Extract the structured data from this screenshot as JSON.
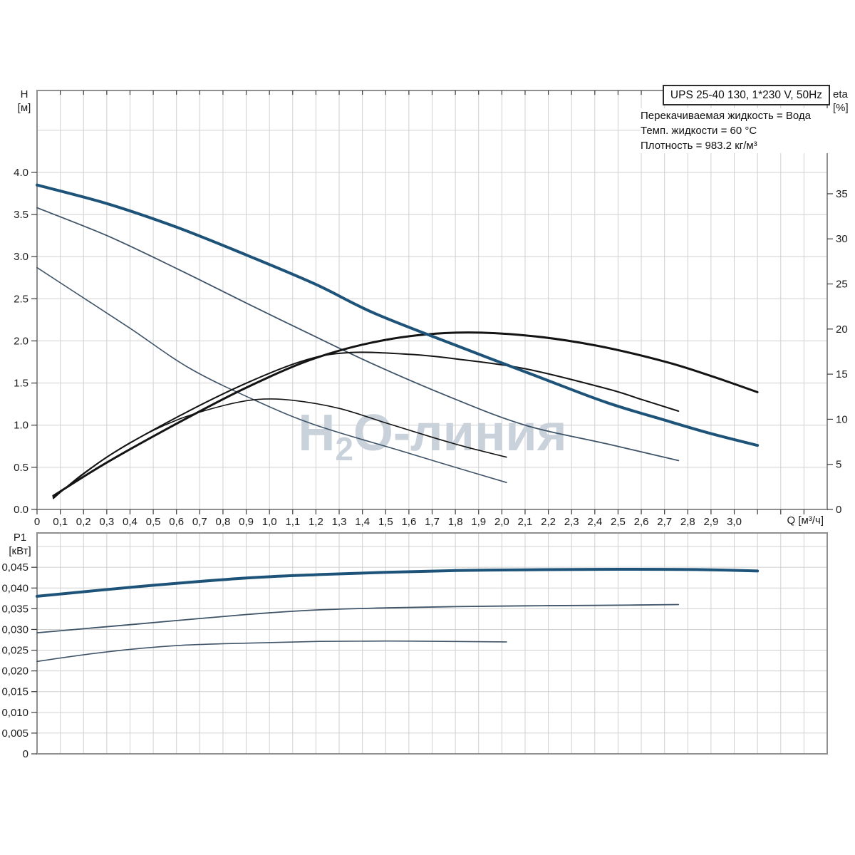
{
  "header": {
    "title_box": "UPS 25-40 130, 1*230 V, 50Hz",
    "info_lines": [
      "Перекачиваемая жидкость = Вода",
      "Темп. жидкости = 60 °C",
      "Плотность = 983.2 кг/м³"
    ],
    "watermark": "H₂O-линия",
    "watermark_parts": {
      "pre": "H",
      "sub": "2",
      "post": "O-линия"
    }
  },
  "colors": {
    "curve_primary": "#1d5379",
    "curve_secondary": "#3f5468",
    "curve_eta": "#141414",
    "grid": "#d0d0d0",
    "frame": "#8f8f8f",
    "tick": "#3a3a3a",
    "text": "#1c1c1c",
    "watermark": "#c9d1da"
  },
  "top_chart": {
    "y_left_name": "H",
    "y_left_unit": "[м]",
    "y_right_name": "eta",
    "y_right_unit": "[%]",
    "x_label": "Q [м³/ч]"
  },
  "bottom_chart": {
    "y_left_name": "P1",
    "y_left_unit": "[кВт]"
  },
  "chart_data": [
    {
      "type": "line",
      "title": "Head and efficiency curves, UPS 25-40 130, three speeds",
      "x_axis": {
        "min": 0,
        "max": 3.4,
        "grid_step": 0.1,
        "tick_values": [
          0,
          0.1,
          0.2,
          0.3,
          0.4,
          0.5,
          0.6,
          0.7,
          0.8,
          0.9,
          1.0,
          1.1,
          1.2,
          1.3,
          1.4,
          1.5,
          1.6,
          1.7,
          1.8,
          1.9,
          2.0,
          2.1,
          2.2,
          2.3,
          2.4,
          2.5,
          2.6,
          2.7,
          2.8,
          2.9,
          3.0
        ],
        "tick_labels": [
          "0",
          "0,1",
          "0,2",
          "0,3",
          "0,4",
          "0,5",
          "0,6",
          "0,7",
          "0,8",
          "0,9",
          "1,0",
          "1,1",
          "1,2",
          "1,3",
          "1,4",
          "1,5",
          "1,6",
          "1,7",
          "1,8",
          "1,9",
          "2,0",
          "2,1",
          "2,2",
          "2,3",
          "2,4",
          "2,5",
          "2,6",
          "2,7",
          "2,8",
          "2,9",
          "3,0"
        ],
        "label": "Q [м³/ч]"
      },
      "y_left": {
        "label": "H [м]",
        "min": 0,
        "max": 4.972,
        "grid_step": 0.5,
        "tick_values": [
          0,
          0.5,
          1.0,
          1.5,
          2.0,
          2.5,
          3.0,
          3.5,
          4.0
        ],
        "tick_labels": [
          "0.0",
          "0.5",
          "1.0",
          "1.5",
          "2.0",
          "2.5",
          "3.0",
          "3.5",
          "4.0"
        ]
      },
      "y_right": {
        "label": "eta [%]",
        "min": 0,
        "max": 46.45,
        "tick_values": [
          0,
          5,
          10,
          15,
          20,
          25,
          30,
          35
        ],
        "tick_labels": [
          "0",
          "5",
          "10",
          "15",
          "20",
          "25",
          "30",
          "35"
        ]
      },
      "grid": true,
      "legend": "none",
      "series": [
        {
          "name": "head-speed-1",
          "axis": "left",
          "color": "secondary",
          "width": 1.6,
          "points": [
            [
              0,
              2.87
            ],
            [
              0.15,
              2.6
            ],
            [
              0.4,
              2.15
            ],
            [
              0.66,
              1.67
            ],
            [
              0.95,
              1.28
            ],
            [
              1.2,
              1.0
            ],
            [
              1.56,
              0.7
            ],
            [
              1.8,
              0.5
            ],
            [
              2.02,
              0.32
            ]
          ]
        },
        {
          "name": "head-speed-2",
          "axis": "left",
          "color": "secondary",
          "width": 1.8,
          "points": [
            [
              0,
              3.58
            ],
            [
              0.3,
              3.25
            ],
            [
              0.6,
              2.86
            ],
            [
              0.9,
              2.45
            ],
            [
              1.16,
              2.1
            ],
            [
              1.45,
              1.72
            ],
            [
              1.78,
              1.33
            ],
            [
              2.1,
              1.0
            ],
            [
              2.45,
              0.78
            ],
            [
              2.76,
              0.58
            ]
          ]
        },
        {
          "name": "eta-speed-1",
          "axis": "right",
          "color": "eta",
          "width": 1.6,
          "points": [
            [
              0.07,
              1.2
            ],
            [
              0.2,
              4.0
            ],
            [
              0.4,
              7.4
            ],
            [
              0.6,
              9.9
            ],
            [
              0.8,
              11.5
            ],
            [
              0.95,
              12.2
            ],
            [
              1.1,
              12.1
            ],
            [
              1.3,
              11.2
            ],
            [
              1.5,
              9.6
            ],
            [
              1.7,
              8.0
            ],
            [
              1.85,
              6.9
            ],
            [
              2.02,
              5.8
            ]
          ]
        },
        {
          "name": "eta-speed-2",
          "axis": "right",
          "color": "eta",
          "width": 2.0,
          "points": [
            [
              0.07,
              1.3
            ],
            [
              0.3,
              5.8
            ],
            [
              0.6,
              10.2
            ],
            [
              0.9,
              14.0
            ],
            [
              1.16,
              16.6
            ],
            [
              1.35,
              17.4
            ],
            [
              1.6,
              17.2
            ],
            [
              1.8,
              16.7
            ],
            [
              2.1,
              15.6
            ],
            [
              2.45,
              13.4
            ],
            [
              2.6,
              12.2
            ],
            [
              2.76,
              10.9
            ]
          ]
        },
        {
          "name": "eta-speed-3",
          "axis": "right",
          "color": "eta",
          "width": 3.0,
          "points": [
            [
              0.07,
              1.5
            ],
            [
              0.3,
              5.2
            ],
            [
              0.6,
              9.5
            ],
            [
              0.9,
              13.5
            ],
            [
              1.2,
              16.8
            ],
            [
              1.5,
              18.8
            ],
            [
              1.8,
              19.6
            ],
            [
              2.1,
              19.3
            ],
            [
              2.4,
              18.2
            ],
            [
              2.7,
              16.4
            ],
            [
              2.9,
              14.8
            ],
            [
              3.1,
              13.0
            ]
          ]
        },
        {
          "name": "head-speed-3",
          "axis": "left",
          "color": "primary",
          "width": 4.0,
          "points": [
            [
              0,
              3.85
            ],
            [
              0.3,
              3.63
            ],
            [
              0.6,
              3.35
            ],
            [
              0.9,
              3.02
            ],
            [
              1.2,
              2.67
            ],
            [
              1.45,
              2.33
            ],
            [
              1.8,
              1.95
            ],
            [
              2.17,
              1.56
            ],
            [
              2.45,
              1.27
            ],
            [
              2.7,
              1.06
            ],
            [
              2.9,
              0.9
            ],
            [
              3.1,
              0.76
            ]
          ]
        }
      ]
    },
    {
      "type": "line",
      "title": "Power input P1 curves, three speeds",
      "x_axis": {
        "min": 0,
        "max": 3.4,
        "grid_step": 0.1,
        "tick_labels": [],
        "label": ""
      },
      "y_left": {
        "label": "P1 [кВт]",
        "min": 0,
        "max": 0.05328,
        "grid_step": 0.005,
        "tick_values": [
          0,
          0.005,
          0.01,
          0.015,
          0.02,
          0.025,
          0.03,
          0.035,
          0.04,
          0.045
        ],
        "tick_labels": [
          "0",
          "0,005",
          "0,010",
          "0,015",
          "0,020",
          "0,025",
          "0,030",
          "0,035",
          "0,040",
          "0,045"
        ]
      },
      "grid": true,
      "legend": "none",
      "series": [
        {
          "name": "p1-speed-1",
          "axis": "left",
          "color": "secondary",
          "width": 1.6,
          "points": [
            [
              0,
              0.0223
            ],
            [
              0.3,
              0.0246
            ],
            [
              0.6,
              0.0261
            ],
            [
              0.9,
              0.0267
            ],
            [
              1.2,
              0.0271
            ],
            [
              1.5,
              0.0272
            ],
            [
              1.8,
              0.0271
            ],
            [
              2.02,
              0.027
            ]
          ]
        },
        {
          "name": "p1-speed-2",
          "axis": "left",
          "color": "secondary",
          "width": 1.8,
          "points": [
            [
              0,
              0.0292
            ],
            [
              0.45,
              0.0314
            ],
            [
              0.9,
              0.0336
            ],
            [
              1.2,
              0.0347
            ],
            [
              1.5,
              0.0352
            ],
            [
              1.8,
              0.0355
            ],
            [
              2.1,
              0.0357
            ],
            [
              2.4,
              0.0358
            ],
            [
              2.76,
              0.036
            ]
          ]
        },
        {
          "name": "p1-speed-3",
          "axis": "left",
          "color": "primary",
          "width": 4.0,
          "points": [
            [
              0,
              0.038
            ],
            [
              0.45,
              0.0404
            ],
            [
              0.9,
              0.0424
            ],
            [
              1.2,
              0.0432
            ],
            [
              1.5,
              0.0438
            ],
            [
              1.8,
              0.0442
            ],
            [
              2.1,
              0.0444
            ],
            [
              2.4,
              0.0445
            ],
            [
              2.7,
              0.0445
            ],
            [
              2.9,
              0.0444
            ],
            [
              3.1,
              0.0441
            ]
          ]
        }
      ]
    }
  ]
}
